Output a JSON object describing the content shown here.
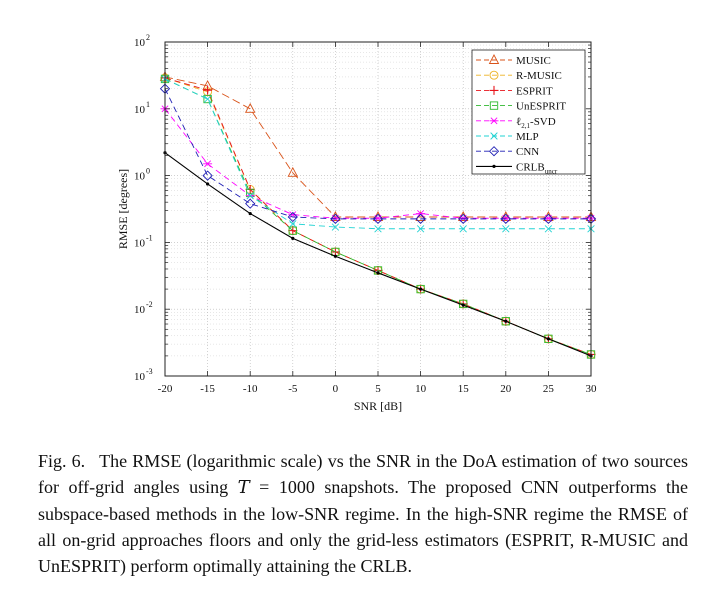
{
  "chart_data": {
    "type": "line",
    "xlabel": "SNR [dB]",
    "ylabel": "RMSE [degrees]",
    "y_scale": "log",
    "grid": true,
    "legend_position": "top-right",
    "xlim": [
      -20,
      30
    ],
    "ylim": [
      0.001,
      100
    ],
    "x": [
      -20,
      -15,
      -10,
      -5,
      0,
      5,
      10,
      15,
      20,
      25,
      30
    ],
    "x_tick_labels": [
      "-20",
      "-15",
      "-10",
      "-5",
      "0",
      "5",
      "10",
      "15",
      "20",
      "25",
      "30"
    ],
    "y_ticks": [
      0.001,
      0.01,
      0.1,
      1,
      10,
      100
    ],
    "y_tick_labels": [
      {
        "base": "10",
        "exp": "-3"
      },
      {
        "base": "10",
        "exp": "-2"
      },
      {
        "base": "10",
        "exp": "-1"
      },
      {
        "base": "10",
        "exp": "0"
      },
      {
        "base": "10",
        "exp": "1"
      },
      {
        "base": "10",
        "exp": "2"
      }
    ],
    "series": [
      {
        "name": "MUSIC",
        "label": {
          "main": "MUSIC"
        },
        "color": "#d95319",
        "dash": "8,4",
        "marker": "triangle",
        "values": [
          30,
          22,
          10,
          1.1,
          0.24,
          0.24,
          0.24,
          0.24,
          0.24,
          0.24,
          0.24
        ]
      },
      {
        "name": "R-MUSIC",
        "label": {
          "main": "R-MUSIC"
        },
        "color": "#edb120",
        "dash": "6,4",
        "marker": "circle",
        "values": [
          29,
          18,
          0.62,
          0.15,
          0.072,
          0.038,
          0.02,
          0.012,
          0.0066,
          0.0036,
          0.0021
        ]
      },
      {
        "name": "ESPRIT",
        "label": {
          "main": "ESPRIT"
        },
        "color": "#e8141c",
        "dash": "6,4",
        "marker": "plus",
        "values": [
          29,
          19,
          0.62,
          0.15,
          0.072,
          0.038,
          0.02,
          0.012,
          0.0066,
          0.0036,
          0.0021
        ]
      },
      {
        "name": "UnESPRIT",
        "label": {
          "main": "UnESPRIT"
        },
        "color": "#2eb82e",
        "dash": "6,4",
        "marker": "square",
        "values": [
          28,
          14,
          0.55,
          0.15,
          0.072,
          0.038,
          0.02,
          0.012,
          0.0066,
          0.0036,
          0.0021
        ]
      },
      {
        "name": "ℓ2,1-SVD",
        "label": {
          "main": "ℓ",
          "sub": "2,1",
          "suffix": "-SVD"
        },
        "color": "#ff00ff",
        "dash": "6,4",
        "marker": "asterisk",
        "values": [
          10,
          1.5,
          0.5,
          0.26,
          0.23,
          0.23,
          0.27,
          0.23,
          0.23,
          0.23,
          0.23
        ]
      },
      {
        "name": "MLP",
        "label": {
          "main": "MLP"
        },
        "color": "#22d3d3",
        "dash": "6,4",
        "marker": "x",
        "values": [
          28,
          14,
          0.5,
          0.19,
          0.17,
          0.16,
          0.16,
          0.16,
          0.16,
          0.16,
          0.16
        ]
      },
      {
        "name": "CNN",
        "label": {
          "main": "CNN"
        },
        "color": "#1f1fb4",
        "dash": "6,4",
        "marker": "diamond",
        "values": [
          20,
          1.0,
          0.38,
          0.24,
          0.225,
          0.225,
          0.225,
          0.225,
          0.225,
          0.225,
          0.225
        ]
      },
      {
        "name": "CRLBuncr",
        "label": {
          "main": "CRLB",
          "sub": "uncr"
        },
        "color": "#000000",
        "dash": "",
        "marker": "dot",
        "values": [
          2.2,
          0.75,
          0.27,
          0.115,
          0.062,
          0.035,
          0.02,
          0.0115,
          0.0066,
          0.0036,
          0.002
        ]
      }
    ]
  },
  "caption": {
    "label": "Fig. 6.",
    "text_before": "The RMSE (logarithmic scale) vs the SNR in the DoA estimation of two sources for off-grid angles using ",
    "math_var": "T",
    "math_rest": " = 1000",
    "text_after": " snapshots. The proposed CNN outperforms the subspace-based methods in the low-SNR regime. In the high-SNR regime the RMSE of all on-grid approaches floors and only the grid-less estimators (ESPRIT, R-MUSIC and UnESPRIT) perform optimally attaining the CRLB."
  }
}
